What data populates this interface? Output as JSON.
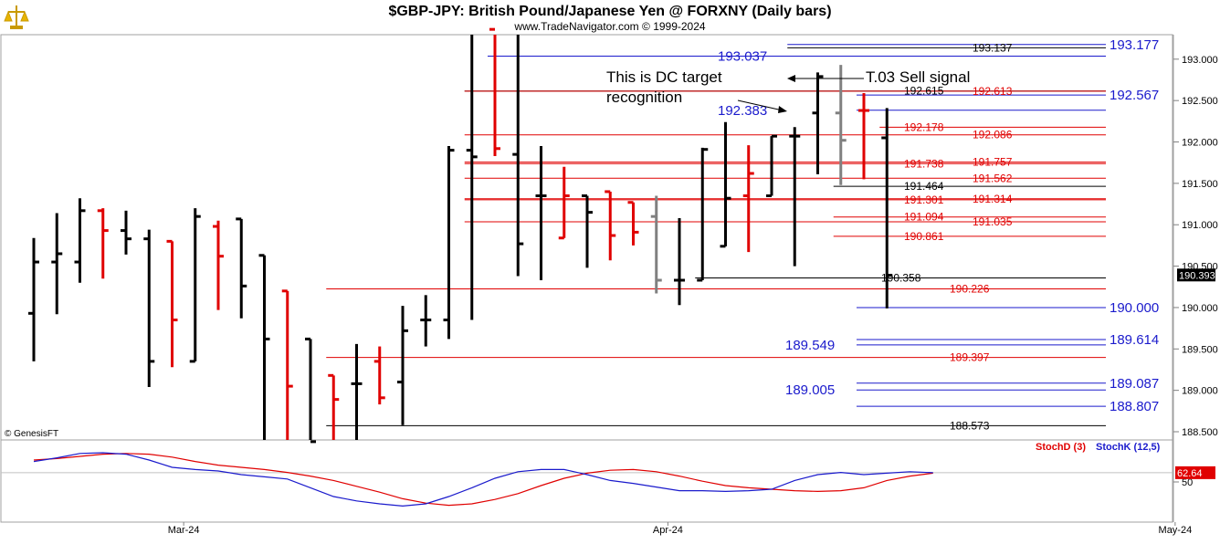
{
  "header": {
    "title": "$GBP-JPY:  British Pound/Japanese Yen @ FORXNY  (Daily bars)",
    "subtitle": "www.TradeNavigator.com © 1999-2024"
  },
  "watermark": "© GenesisFT",
  "colors": {
    "up_bar": "#000000",
    "down_bar": "#e00000",
    "flat_bar": "#808080",
    "blue_level": "#1a1acc",
    "red_level": "#e00000",
    "black_level": "#000000",
    "stoch_d": "#e00000",
    "stoch_k": "#1a1acc",
    "grid": "#c0c0c0"
  },
  "annotations": {
    "dc_target": [
      "This is DC target",
      "recognition"
    ],
    "sell_signal": "T.03 Sell signal"
  },
  "chart_data": [
    {
      "type": "ohlc",
      "title": "$GBP-JPY:  British Pound/Japanese Yen @ FORXNY  (Daily bars)",
      "ylim": [
        188.32,
        193.36
      ],
      "y_ticks": [
        "193.000",
        "192.500",
        "192.000",
        "191.500",
        "191.000",
        "190.500",
        "190.000",
        "189.500",
        "189.000",
        "188.500"
      ],
      "y_tick_values": [
        193.0,
        192.5,
        192.0,
        191.5,
        191.0,
        190.5,
        190.0,
        189.5,
        189.0,
        188.5
      ],
      "x_labels": [
        {
          "label": "Mar-24",
          "bar": 6.5
        },
        {
          "label": "Apr-24",
          "bar": 27.5
        },
        {
          "label": "May-24",
          "bar": 49.5
        }
      ],
      "last_price_label": "190.393",
      "last_price": 190.393,
      "bars": [
        {
          "o": 189.93,
          "h": 190.84,
          "l": 189.35,
          "c": 190.55,
          "d": "up"
        },
        {
          "o": 190.55,
          "h": 191.14,
          "l": 189.92,
          "c": 190.65,
          "d": "up"
        },
        {
          "o": 190.55,
          "h": 191.32,
          "l": 190.3,
          "c": 191.17,
          "d": "up"
        },
        {
          "o": 191.17,
          "h": 191.2,
          "l": 190.35,
          "c": 190.93,
          "d": "down"
        },
        {
          "o": 190.93,
          "h": 191.17,
          "l": 190.64,
          "c": 190.83,
          "d": "up"
        },
        {
          "o": 190.83,
          "h": 190.94,
          "l": 189.04,
          "c": 189.35,
          "d": "up"
        },
        {
          "o": 190.8,
          "h": 190.8,
          "l": 189.28,
          "c": 189.85,
          "d": "down"
        },
        {
          "o": 189.35,
          "h": 191.2,
          "l": 189.35,
          "c": 191.1,
          "d": "up"
        },
        {
          "o": 190.98,
          "h": 191.05,
          "l": 189.97,
          "c": 190.62,
          "d": "down"
        },
        {
          "o": 191.07,
          "h": 191.07,
          "l": 189.87,
          "c": 190.26,
          "d": "up"
        },
        {
          "o": 190.63,
          "h": 190.63,
          "l": 188.38,
          "c": 189.62,
          "d": "up"
        },
        {
          "o": 190.2,
          "h": 190.2,
          "l": 188.38,
          "c": 189.05,
          "d": "down"
        },
        {
          "o": 189.62,
          "h": 189.62,
          "l": 188.38,
          "c": 188.38,
          "d": "up"
        },
        {
          "o": 189.18,
          "h": 189.18,
          "l": 188.38,
          "c": 188.89,
          "d": "down"
        },
        {
          "o": 189.08,
          "h": 189.56,
          "l": 188.38,
          "c": 189.08,
          "d": "up"
        },
        {
          "o": 189.35,
          "h": 189.53,
          "l": 188.83,
          "c": 188.91,
          "d": "down"
        },
        {
          "o": 189.1,
          "h": 190.02,
          "l": 188.58,
          "c": 189.72,
          "d": "up"
        },
        {
          "o": 189.85,
          "h": 190.15,
          "l": 189.53,
          "c": 189.85,
          "d": "up"
        },
        {
          "o": 189.85,
          "h": 191.95,
          "l": 189.62,
          "c": 191.9,
          "d": "up"
        },
        {
          "o": 191.9,
          "h": 193.36,
          "l": 189.85,
          "c": 191.82,
          "d": "up"
        },
        {
          "o": 193.36,
          "h": 193.36,
          "l": 191.83,
          "c": 191.92,
          "d": "down"
        },
        {
          "o": 191.85,
          "h": 193.36,
          "l": 190.38,
          "c": 190.77,
          "d": "up"
        },
        {
          "o": 191.35,
          "h": 191.95,
          "l": 190.33,
          "c": 191.35,
          "d": "up"
        },
        {
          "o": 190.84,
          "h": 191.7,
          "l": 190.84,
          "c": 191.35,
          "d": "down"
        },
        {
          "o": 191.35,
          "h": 191.35,
          "l": 190.48,
          "c": 191.15,
          "d": "up"
        },
        {
          "o": 191.4,
          "h": 191.4,
          "l": 190.57,
          "c": 190.87,
          "d": "down"
        },
        {
          "o": 191.27,
          "h": 191.27,
          "l": 190.75,
          "c": 190.91,
          "d": "down"
        },
        {
          "o": 191.1,
          "h": 191.35,
          "l": 190.17,
          "c": 190.33,
          "d": "flat"
        },
        {
          "o": 190.33,
          "h": 191.08,
          "l": 190.03,
          "c": 190.33,
          "d": "up"
        },
        {
          "o": 190.33,
          "h": 191.93,
          "l": 190.33,
          "c": 191.91,
          "d": "up"
        },
        {
          "o": 190.74,
          "h": 192.24,
          "l": 190.74,
          "c": 191.32,
          "d": "up"
        },
        {
          "o": 191.35,
          "h": 191.96,
          "l": 190.67,
          "c": 191.62,
          "d": "down"
        },
        {
          "o": 191.35,
          "h": 192.07,
          "l": 191.35,
          "c": 192.07,
          "d": "up"
        },
        {
          "o": 192.07,
          "h": 192.18,
          "l": 190.5,
          "c": 192.07,
          "d": "up"
        },
        {
          "o": 192.35,
          "h": 192.84,
          "l": 191.61,
          "c": 192.79,
          "d": "up"
        },
        {
          "o": 192.35,
          "h": 192.93,
          "l": 191.48,
          "c": 192.02,
          "d": "flat"
        },
        {
          "o": 192.38,
          "h": 192.59,
          "l": 191.55,
          "c": 192.38,
          "d": "down"
        },
        {
          "o": 192.05,
          "h": 192.41,
          "l": 189.99,
          "c": 190.39,
          "d": "up"
        }
      ],
      "levels": [
        {
          "value": 193.177,
          "label": "193.177",
          "color": "blue",
          "x_from_bar": 33,
          "label_big": true
        },
        {
          "value": 193.137,
          "label": "193.137",
          "color": "black",
          "x_from_bar": 33
        },
        {
          "value": 193.037,
          "label": "193.037",
          "color": "blue",
          "x_from_bar": 20,
          "label_big": true,
          "label_left": true
        },
        {
          "value": 192.615,
          "label": "192.615",
          "color": "black",
          "x_from_bar": 19
        },
        {
          "value": 192.613,
          "label": "192.613",
          "color": "red",
          "x_from_bar": 19
        },
        {
          "value": 192.567,
          "label": "192.567",
          "color": "blue",
          "x_from_bar": 36,
          "label_big": true
        },
        {
          "value": 192.383,
          "label": "192.383",
          "color": "blue",
          "x_from_bar": 36,
          "label_big": true,
          "label_left": true
        },
        {
          "value": 192.178,
          "label": "192.178",
          "color": "red",
          "x_from_bar": 37
        },
        {
          "value": 192.086,
          "label": "192.086",
          "color": "red",
          "x_from_bar": 19
        },
        {
          "value": 191.757,
          "label": "191.757",
          "color": "red",
          "x_from_bar": 19
        },
        {
          "value": 191.738,
          "label": "191.738",
          "color": "red",
          "x_from_bar": 19
        },
        {
          "value": 191.562,
          "label": "191.562",
          "color": "red",
          "x_from_bar": 19
        },
        {
          "value": 191.464,
          "label": "191.464",
          "color": "black",
          "x_from_bar": 35
        },
        {
          "value": 191.314,
          "label": "191.314",
          "color": "red",
          "x_from_bar": 19
        },
        {
          "value": 191.301,
          "label": "191.301",
          "color": "red",
          "x_from_bar": 19
        },
        {
          "value": 191.094,
          "label": "191.094",
          "color": "red",
          "x_from_bar": 35
        },
        {
          "value": 191.035,
          "label": "191.035",
          "color": "red",
          "x_from_bar": 19
        },
        {
          "value": 190.861,
          "label": "190.861",
          "color": "red",
          "x_from_bar": 35
        },
        {
          "value": 190.358,
          "label": "190.358",
          "color": "black",
          "x_from_bar": 29
        },
        {
          "value": 190.226,
          "label": "190.226",
          "color": "red",
          "x_from_bar": 13
        },
        {
          "value": 190.0,
          "label": "190.000",
          "color": "blue",
          "x_from_bar": 36,
          "label_big": true
        },
        {
          "value": 189.614,
          "label": "189.614",
          "color": "blue",
          "x_from_bar": 36,
          "label_big": true
        },
        {
          "value": 189.549,
          "label": "189.549",
          "color": "blue",
          "x_from_bar": 36,
          "label_big": true,
          "label_left": true
        },
        {
          "value": 189.397,
          "label": "189.397",
          "color": "red",
          "x_from_bar": 13
        },
        {
          "value": 189.087,
          "label": "189.087",
          "color": "blue",
          "x_from_bar": 36,
          "label_big": true
        },
        {
          "value": 189.005,
          "label": "189.005",
          "color": "blue",
          "x_from_bar": 36,
          "label_big": true,
          "label_left": true
        },
        {
          "value": 188.807,
          "label": "188.807",
          "color": "blue",
          "x_from_bar": 36,
          "label_big": true
        },
        {
          "value": 188.573,
          "label": "188.573",
          "color": "black",
          "x_from_bar": 13
        }
      ]
    },
    {
      "type": "line",
      "legend": [
        "StochD (3)",
        "StochK (12,5)"
      ],
      "ylim": [
        0,
        100
      ],
      "y_ticks": [
        "50"
      ],
      "y_tick_values": [
        50
      ],
      "last_value_label": "62.64",
      "last_value": 62.64,
      "series": [
        {
          "name": "StochD (3)",
          "values": [
            80,
            82,
            85,
            88,
            89,
            88,
            84,
            78,
            73,
            70,
            67,
            63,
            58,
            52,
            44,
            36,
            27,
            21,
            18,
            20,
            26,
            34,
            45,
            55,
            62,
            66,
            67,
            64,
            58,
            51,
            45,
            42,
            40,
            38,
            37,
            38,
            42,
            52,
            58,
            62
          ]
        },
        {
          "name": "StochK (12,5)",
          "values": [
            78,
            83,
            89,
            90,
            88,
            80,
            70,
            67,
            65,
            60,
            57,
            54,
            42,
            30,
            24,
            20,
            17,
            20,
            30,
            42,
            55,
            64,
            67,
            67,
            60,
            52,
            48,
            43,
            38,
            38,
            37,
            38,
            40,
            52,
            60,
            63,
            60,
            62,
            64,
            62.64
          ]
        }
      ]
    }
  ]
}
